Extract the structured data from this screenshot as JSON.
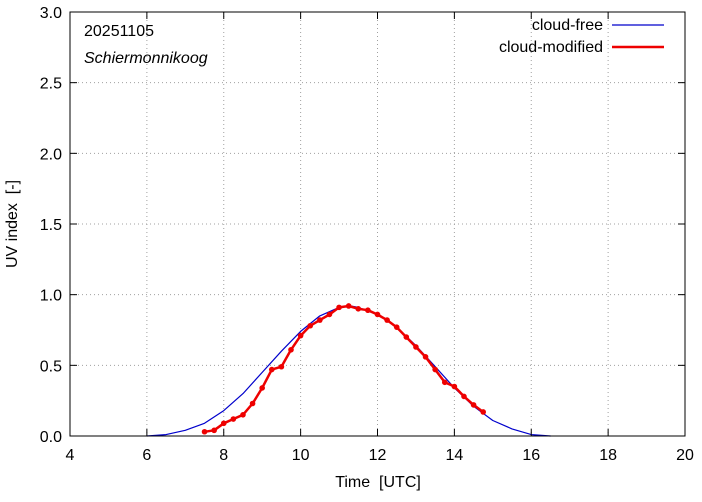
{
  "chart_data": {
    "type": "line",
    "title": "",
    "date_label": "20251105",
    "location_label": "Schiermonnikoog",
    "xlabel": "Time  [UTC]",
    "ylabel": "UV index  [-]",
    "xlim": [
      4,
      20
    ],
    "ylim": [
      0,
      3.0
    ],
    "xticks": [
      4,
      6,
      8,
      10,
      12,
      14,
      16,
      18,
      20
    ],
    "yticks": [
      0.0,
      0.5,
      1.0,
      1.5,
      2.0,
      2.5,
      3.0
    ],
    "ytick_labels": [
      "0.0",
      "0.5",
      "1.0",
      "1.5",
      "2.0",
      "2.5",
      "3.0"
    ],
    "legend_position": "top-right",
    "series": [
      {
        "name": "cloud-free",
        "color": "#0000cc",
        "style": "line",
        "x": [
          6.0,
          6.5,
          7.0,
          7.5,
          8.0,
          8.5,
          9.0,
          9.5,
          10.0,
          10.5,
          11.0,
          11.3,
          11.5,
          12.0,
          12.5,
          13.0,
          13.5,
          14.0,
          14.5,
          15.0,
          15.5,
          16.0,
          16.5
        ],
        "y": [
          0.0,
          0.01,
          0.04,
          0.09,
          0.18,
          0.3,
          0.45,
          0.6,
          0.74,
          0.85,
          0.91,
          0.92,
          0.91,
          0.86,
          0.77,
          0.64,
          0.49,
          0.34,
          0.21,
          0.11,
          0.05,
          0.01,
          0.0
        ]
      },
      {
        "name": "cloud-modified",
        "color": "#ee0000",
        "style": "line-points",
        "x": [
          7.5,
          7.75,
          8.0,
          8.25,
          8.5,
          8.75,
          9.0,
          9.25,
          9.5,
          9.75,
          10.0,
          10.25,
          10.5,
          10.75,
          11.0,
          11.25,
          11.5,
          11.75,
          12.0,
          12.25,
          12.5,
          12.75,
          13.0,
          13.25,
          13.5,
          13.75,
          14.0,
          14.25,
          14.5,
          14.75
        ],
        "y": [
          0.03,
          0.04,
          0.09,
          0.12,
          0.15,
          0.23,
          0.34,
          0.47,
          0.49,
          0.61,
          0.71,
          0.78,
          0.82,
          0.86,
          0.91,
          0.92,
          0.9,
          0.89,
          0.86,
          0.82,
          0.77,
          0.7,
          0.63,
          0.56,
          0.47,
          0.38,
          0.35,
          0.28,
          0.22,
          0.17
        ]
      }
    ]
  }
}
